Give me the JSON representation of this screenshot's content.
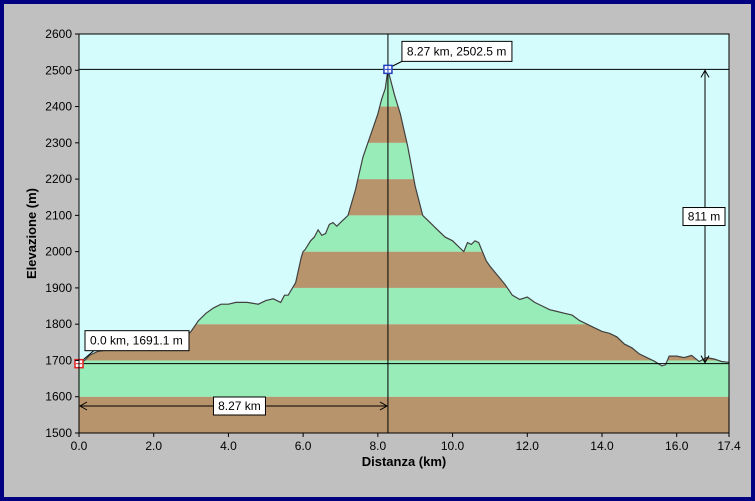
{
  "chart_data": {
    "type": "area",
    "title": "",
    "xlabel": "Distanza (km)",
    "ylabel": "Elevazione (m)",
    "xlim": [
      0,
      17.4
    ],
    "ylim": [
      1500,
      2600
    ],
    "xticks": [
      0.0,
      2.0,
      4.0,
      6.0,
      8.0,
      10.0,
      12.0,
      14.0,
      16.0,
      17.4
    ],
    "xtick_labels": [
      "0.0",
      "2.0",
      "4.0",
      "6.0",
      "8.0",
      "10.0",
      "12.0",
      "14.0",
      "16.0",
      "17.4"
    ],
    "yticks": [
      1500,
      1600,
      1700,
      1800,
      1900,
      2000,
      2100,
      2200,
      2300,
      2400,
      2500,
      2600
    ],
    "grid": false,
    "colors": {
      "sky": "#d4fcfc",
      "band_green": "#98ecb8",
      "band_brown": "#b8946c",
      "outline": "#404040",
      "frame": "#000080",
      "background": "#c0c0c0",
      "marker_start": "#e02020",
      "marker_peak": "#2040c0"
    },
    "profile": {
      "x": [
        0.0,
        0.15,
        0.3,
        0.5,
        0.8,
        1.2,
        1.6,
        2.0,
        2.4,
        2.8,
        3.0,
        3.2,
        3.4,
        3.6,
        3.8,
        4.0,
        4.2,
        4.5,
        4.8,
        5.0,
        5.2,
        5.4,
        5.5,
        5.6,
        5.8,
        5.95,
        6.0,
        6.05,
        6.2,
        6.3,
        6.4,
        6.5,
        6.6,
        6.7,
        6.8,
        6.9,
        7.0,
        7.2,
        7.4,
        7.6,
        7.8,
        8.0,
        8.1,
        8.2,
        8.27,
        8.35,
        8.45,
        8.6,
        8.8,
        9.0,
        9.2,
        9.4,
        9.6,
        9.8,
        10.0,
        10.1,
        10.2,
        10.3,
        10.4,
        10.5,
        10.6,
        10.7,
        10.8,
        10.9,
        11.0,
        11.2,
        11.4,
        11.6,
        11.8,
        12.0,
        12.2,
        12.4,
        12.6,
        12.8,
        13.0,
        13.2,
        13.4,
        13.6,
        13.8,
        14.0,
        14.2,
        14.4,
        14.6,
        14.8,
        15.0,
        15.2,
        15.4,
        15.6,
        15.7,
        15.8,
        16.0,
        16.2,
        16.4,
        16.6,
        16.8,
        17.0,
        17.2,
        17.4
      ],
      "y": [
        1691,
        1700,
        1715,
        1725,
        1730,
        1735,
        1742,
        1748,
        1755,
        1760,
        1780,
        1810,
        1830,
        1845,
        1855,
        1855,
        1860,
        1860,
        1855,
        1865,
        1870,
        1860,
        1880,
        1880,
        1915,
        1985,
        2000,
        2005,
        2030,
        2040,
        2060,
        2045,
        2050,
        2075,
        2080,
        2070,
        2080,
        2100,
        2170,
        2260,
        2320,
        2380,
        2420,
        2450,
        2502,
        2470,
        2430,
        2380,
        2290,
        2180,
        2100,
        2080,
        2060,
        2040,
        2030,
        2020,
        2010,
        2000,
        2025,
        2020,
        2030,
        2025,
        2000,
        1975,
        1960,
        1935,
        1910,
        1880,
        1868,
        1875,
        1860,
        1850,
        1840,
        1835,
        1830,
        1825,
        1810,
        1800,
        1790,
        1780,
        1775,
        1765,
        1745,
        1735,
        1718,
        1708,
        1698,
        1685,
        1688,
        1712,
        1712,
        1708,
        1714,
        1697,
        1708,
        1704,
        1697,
        1695
      ]
    },
    "annotations": {
      "start_label": "0.0 km, 1691.1 m",
      "peak_label": "8.27 km, 2502.5 m",
      "distance_label": "8.27 km",
      "gain_label": "811 m"
    },
    "markers": {
      "start": {
        "x": 0.0,
        "y": 1691.1
      },
      "peak": {
        "x": 8.27,
        "y": 2502.5
      }
    }
  }
}
